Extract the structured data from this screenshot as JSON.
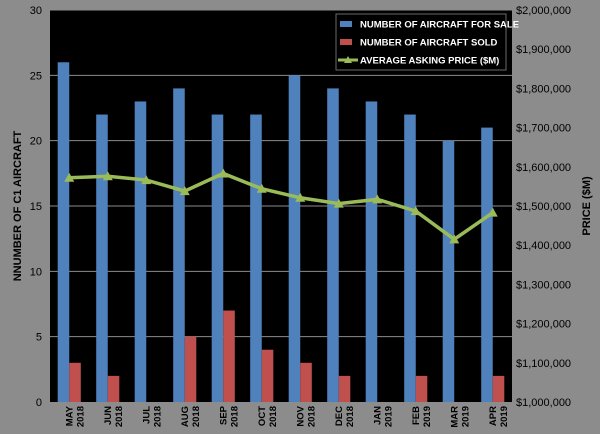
{
  "chart_data": {
    "type": "bar",
    "categories": [
      [
        "MAY",
        "2018"
      ],
      [
        "JUN",
        "2018"
      ],
      [
        "JUL",
        "2018"
      ],
      [
        "AUG",
        "2018"
      ],
      [
        "SEP",
        "2018"
      ],
      [
        "OCT",
        "2018"
      ],
      [
        "NOV",
        "2018"
      ],
      [
        "DEC",
        "2018"
      ],
      [
        "JAN",
        "2019"
      ],
      [
        "FEB",
        "2019"
      ],
      [
        "MAR",
        "2019"
      ],
      [
        "APR",
        "2019"
      ]
    ],
    "series": [
      {
        "name": "NUMBER OF AIRCRAFT FOR SALE",
        "kind": "bar",
        "axis": "left",
        "color": "#4f81bd",
        "values": [
          26,
          22,
          23,
          24,
          22,
          22,
          25,
          24,
          23,
          22,
          20,
          21
        ]
      },
      {
        "name": "NUMBER OF AIRCRAFT SOLD",
        "kind": "bar",
        "axis": "left",
        "color": "#c0504d",
        "values": [
          3,
          2,
          0,
          5,
          7,
          4,
          3,
          2,
          0,
          2,
          0,
          2
        ]
      },
      {
        "name": "AVERAGE ASKING PRICE ($M)",
        "kind": "line",
        "axis": "right",
        "color": "#9bbb59",
        "values": [
          1572000,
          1576000,
          1566000,
          1538000,
          1583000,
          1544000,
          1521000,
          1506000,
          1517000,
          1487000,
          1415000,
          1483000
        ]
      }
    ],
    "title": "",
    "xlabel": "",
    "ylabel": "NNUMBER OF C1 AIRCRAFT",
    "ylabel_right": "PRICE ($M)",
    "ylim": [
      0,
      30
    ],
    "ylim_right": [
      1000000,
      2000000
    ],
    "yticks": [
      "0",
      "5",
      "10",
      "15",
      "20",
      "25",
      "30"
    ],
    "yticks_right": [
      "$1,000,000",
      "$1,100,000",
      "$1,200,000",
      "$1,300,000",
      "$1,400,000",
      "$1,500,000",
      "$1,600,000",
      "$1,700,000",
      "$1,800,000",
      "$1,900,000",
      "$2,000,000"
    ],
    "grid": true,
    "legend_position": "top-right",
    "background": "#000000"
  }
}
